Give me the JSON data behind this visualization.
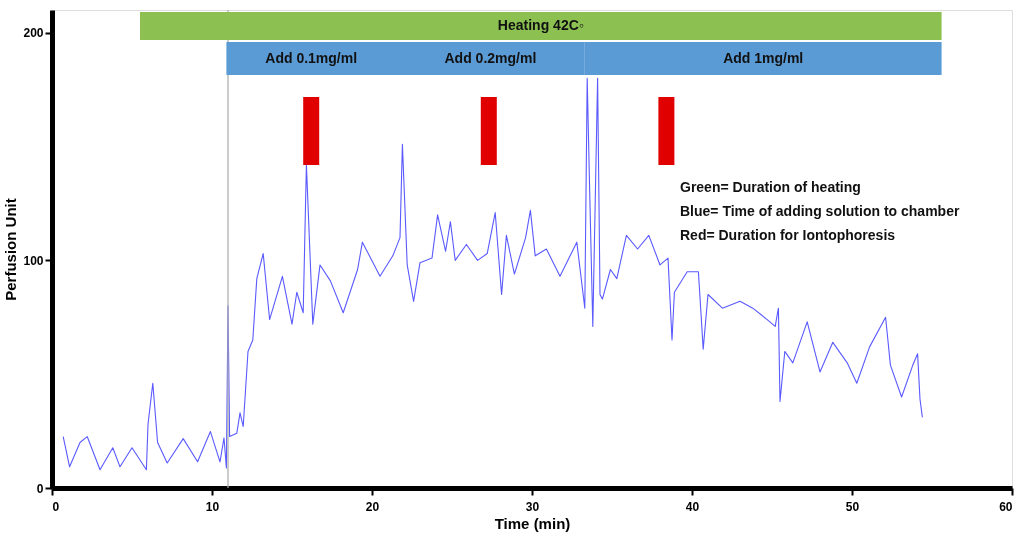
{
  "chart_data": {
    "type": "line",
    "xlabel": "Time (min)",
    "ylabel": "Perfusion Unit",
    "x": [
      0.7,
      1.1,
      1.75,
      2.2,
      3.0,
      3.8,
      4.25,
      5.0,
      5.9,
      6.0,
      6.3,
      6.6,
      7.2,
      8.2,
      9.1,
      9.9,
      10.5,
      10.75,
      10.9,
      11.0,
      11.1,
      11.55,
      11.75,
      11.95,
      12.25,
      12.55,
      12.8,
      13.2,
      13.6,
      14.4,
      15.0,
      15.3,
      15.7,
      15.9,
      16.3,
      16.75,
      17.4,
      18.2,
      19.1,
      19.4,
      20.5,
      21.3,
      21.75,
      21.9,
      22.2,
      22.6,
      23.0,
      23.75,
      24.1,
      24.6,
      24.9,
      25.2,
      25.9,
      26.6,
      27.2,
      27.7,
      28.1,
      28.4,
      28.9,
      29.6,
      29.9,
      30.2,
      30.9,
      31.75,
      32.8,
      33.3,
      33.45,
      33.6,
      33.8,
      34.1,
      34.25,
      34.4,
      34.9,
      35.3,
      35.9,
      36.6,
      37.3,
      38.0,
      38.5,
      38.75,
      38.9,
      39.7,
      40.4,
      40.7,
      41.0,
      41.9,
      43.0,
      43.8,
      44.7,
      45.2,
      45.4,
      45.5,
      45.8,
      46.3,
      47.2,
      48.0,
      48.8,
      49.7,
      50.3,
      51.1,
      52.1,
      52.4,
      53.1,
      53.8,
      54.1,
      54.25,
      54.4
    ],
    "series": [
      {
        "color": "#5a5aff",
        "values": [
          22.6,
          9.3,
          20,
          22.6,
          8,
          17.7,
          9.3,
          17.7,
          8,
          28,
          46,
          20,
          11,
          21.7,
          11.5,
          24.8,
          11.5,
          22,
          8.8,
          80,
          22.6,
          24,
          33,
          27,
          60,
          65,
          92,
          103,
          74,
          93,
          72,
          86,
          77,
          142,
          72,
          98,
          91,
          77,
          96,
          108,
          93,
          102,
          110,
          151,
          98,
          82,
          99,
          101,
          120,
          104,
          117,
          100,
          107,
          100,
          103,
          121,
          85,
          111,
          94,
          110,
          122,
          102,
          105,
          93,
          108,
          79,
          180,
          132,
          71,
          180,
          85,
          83,
          96,
          92,
          111,
          105,
          111,
          98,
          101,
          65,
          86,
          95,
          95,
          61,
          85,
          79,
          82,
          79,
          74,
          71,
          79,
          38,
          60,
          55,
          73,
          51,
          64,
          55,
          46,
          62,
          75,
          54,
          40,
          54,
          59,
          39,
          31
        ]
      }
    ],
    "xlim": [
      0,
      60
    ],
    "xticks": [
      0,
      10,
      20,
      30,
      40,
      50,
      60
    ],
    "ylim": [
      0,
      210
    ],
    "yticks": [
      0,
      100,
      200
    ],
    "grid": false,
    "marker": "none",
    "line_style": "solid",
    "ref_lines": [
      {
        "axis": "x",
        "value": 11,
        "color": "#aaaaaa"
      }
    ],
    "bands": [
      {
        "axis": "x",
        "from": 5.5,
        "to": 55.6,
        "label": "Heating 42C◦",
        "color": "#8cc152"
      },
      {
        "axis": "x",
        "from": 10.9,
        "to": 21.5,
        "label": "Add 0.1mg/ml",
        "color": "#5b9bd5"
      },
      {
        "axis": "x",
        "from": 21.5,
        "to": 33.3,
        "label": "Add 0.2mg/ml",
        "color": "#5b9bd5"
      },
      {
        "axis": "x",
        "from": 33.3,
        "to": 55.6,
        "label": "Add 1mg/ml",
        "color": "#5b9bd5"
      },
      {
        "axis": "x",
        "from": 15.7,
        "to": 16.7,
        "color": "#e00000"
      },
      {
        "axis": "x",
        "from": 26.8,
        "to": 27.8,
        "color": "#e00000"
      },
      {
        "axis": "x",
        "from": 37.9,
        "to": 38.9,
        "color": "#e00000"
      }
    ],
    "annotations": [
      "Green= Duration of heating",
      "Blue= Time of adding solution to chamber",
      "Red= Duration for Iontophoresis"
    ]
  }
}
